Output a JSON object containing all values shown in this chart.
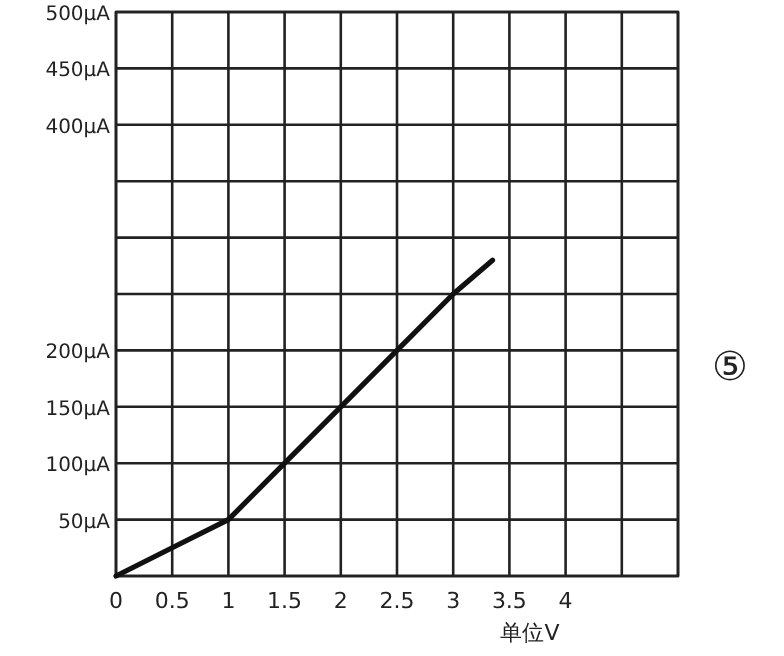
{
  "chart_data": {
    "type": "line",
    "xlabel": "单位V",
    "annotations": [
      "⑤"
    ],
    "x": [
      0,
      0.5,
      1,
      1.5,
      2,
      2.5,
      3,
      3.35
    ],
    "values": [
      0,
      25,
      50,
      100,
      150,
      200,
      250,
      280
    ],
    "color": "#111111",
    "xlim": [
      0,
      5
    ],
    "ylim": [
      0,
      500
    ],
    "xticks": [
      0,
      0.5,
      1,
      1.5,
      2,
      2.5,
      3,
      3.5,
      4,
      {
        "value": 4.5,
        "label": null
      },
      {
        "value": 5,
        "label": null
      }
    ],
    "yticks": [
      {
        "value": 0,
        "label": null
      },
      {
        "value": 50,
        "label": "50μA"
      },
      {
        "value": 100,
        "label": "100μA"
      },
      {
        "value": 150,
        "label": "150μA"
      },
      {
        "value": 200,
        "label": "200μA"
      },
      {
        "value": 250,
        "label": null
      },
      {
        "value": 300,
        "label": null
      },
      {
        "value": 350,
        "label": null
      },
      {
        "value": 400,
        "label": "400μA"
      },
      {
        "value": 450,
        "label": "450μA"
      },
      {
        "value": 500,
        "label": "500μA"
      }
    ],
    "grid": true
  }
}
